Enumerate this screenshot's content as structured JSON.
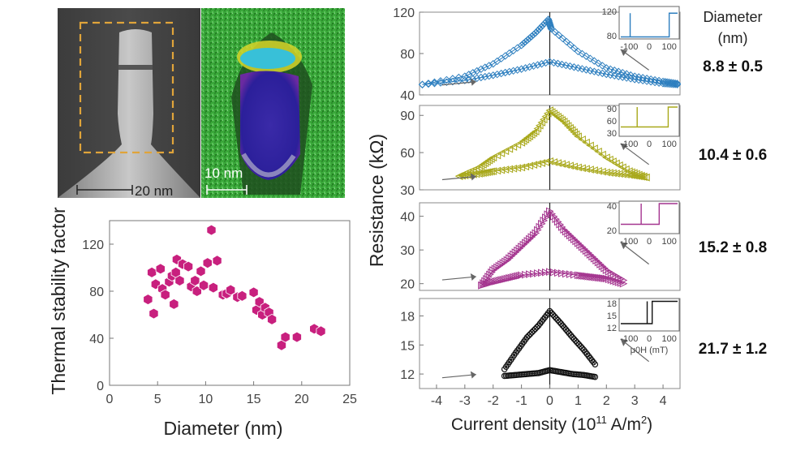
{
  "panels": {
    "tem": {
      "scale_label": "20 nm"
    },
    "eds": {
      "scale_label": "10 nm"
    }
  },
  "colors": {
    "scatter": "#c8207e",
    "dia_8_8": "#2e7fbf",
    "dia_10_4": "#a8a81a",
    "dia_15_2": "#a4358f",
    "dia_21_7": "#111111",
    "tem_box": "#e0a43a"
  },
  "chart_data": [
    {
      "type": "scatter",
      "xlabel": "Diameter (nm)",
      "ylabel": "Thermal stability factor",
      "xlim": [
        0,
        25
      ],
      "ylim": [
        0,
        140
      ],
      "xticks": [
        "0",
        "5",
        "10",
        "15",
        "20",
        "25"
      ],
      "yticks": [
        "0",
        "40",
        "80",
        "120"
      ],
      "grid": false,
      "marker": "hexagon",
      "points": [
        [
          4.0,
          73
        ],
        [
          4.4,
          96
        ],
        [
          4.6,
          61
        ],
        [
          4.8,
          86
        ],
        [
          5.3,
          99
        ],
        [
          5.5,
          82
        ],
        [
          5.8,
          77
        ],
        [
          6.2,
          88
        ],
        [
          6.5,
          93
        ],
        [
          6.7,
          69
        ],
        [
          6.9,
          96
        ],
        [
          7.0,
          107
        ],
        [
          7.3,
          89
        ],
        [
          7.6,
          103
        ],
        [
          8.2,
          101
        ],
        [
          8.5,
          84
        ],
        [
          8.9,
          89
        ],
        [
          9.1,
          80
        ],
        [
          9.5,
          97
        ],
        [
          9.8,
          85
        ],
        [
          10.2,
          104
        ],
        [
          10.6,
          132
        ],
        [
          10.8,
          83
        ],
        [
          11.2,
          106
        ],
        [
          11.8,
          77
        ],
        [
          12.2,
          78
        ],
        [
          12.6,
          81
        ],
        [
          13.3,
          75
        ],
        [
          13.8,
          76
        ],
        [
          15.0,
          79
        ],
        [
          15.3,
          64
        ],
        [
          15.6,
          71
        ],
        [
          15.9,
          60
        ],
        [
          16.2,
          66
        ],
        [
          16.6,
          62
        ],
        [
          16.9,
          56
        ],
        [
          17.9,
          34
        ],
        [
          18.3,
          41
        ],
        [
          19.5,
          41
        ],
        [
          21.3,
          48
        ],
        [
          22.0,
          46
        ]
      ]
    },
    {
      "type": "scatter",
      "subtype": "hysteresis-loops",
      "xlabel": "Current density (10",
      "xlabel_exp": "11",
      "xlabel_unit": " A/m",
      "xlabel_sq": "2",
      "xlabel_close": ")",
      "ylabel": "Resistance (kΩ)",
      "xlim": [
        -4.6,
        4.6
      ],
      "xticks": [
        "-4",
        "-3",
        "-2",
        "-1",
        "0",
        "1",
        "2",
        "3",
        "4"
      ],
      "legend_title": [
        "Diameter",
        "(nm)"
      ],
      "series": [
        {
          "name": "8.8 ± 0.5",
          "marker": "diamond",
          "ylim": [
            40,
            120
          ],
          "yticks": [
            "40",
            "80",
            "120"
          ],
          "upper": {
            "x": [
              -4.5,
              -3,
              -2,
              -1,
              -0.5,
              -0.05,
              0.05,
              1,
              2,
              3,
              4,
              4.5
            ],
            "y": [
              50,
              58,
              70,
              88,
              100,
              113,
              104,
              82,
              66,
              58,
              53,
              51
            ]
          },
          "lower": {
            "x": [
              -4.5,
              -3,
              -2,
              -1,
              0,
              1,
              2,
              3,
              4,
              4.5
            ],
            "y": [
              50,
              54,
              59,
              65,
              72,
              66,
              60,
              55,
              51,
              50
            ]
          },
          "inset": {
            "xlabel": "",
            "xticks": [
              "-100",
              "0",
              "100"
            ],
            "yticks": [
              "80",
              "120"
            ],
            "loop_low": 78,
            "loop_high": 117,
            "switch_neg": -95,
            "switch_pos": 100
          }
        },
        {
          "name": "10.4 ± 0.6",
          "marker": "triangle-left",
          "ylim": [
            30,
            98
          ],
          "yticks": [
            "30",
            "60",
            "90"
          ],
          "upper": {
            "x": [
              -3.2,
              -2.5,
              -2,
              -1,
              -0.5,
              0,
              0.5,
              1,
              2,
              2.8,
              3.4
            ],
            "y": [
              41,
              48,
              56,
              68,
              77,
              94,
              85,
              73,
              56,
              45,
              40
            ]
          },
          "lower": {
            "x": [
              -3.2,
              -2.5,
              -2,
              -1,
              0,
              1,
              2,
              2.8,
              3.4
            ],
            "y": [
              41,
              43,
              45,
              48,
              53,
              48,
              44,
              42,
              40
            ]
          },
          "inset": {
            "xlabel": "",
            "xticks": [
              "-100",
              "0",
              "100"
            ],
            "yticks": [
              "30",
              "60",
              "90"
            ],
            "loop_low": 45,
            "loop_high": 94,
            "switch_neg": -60,
            "switch_pos": 95
          }
        },
        {
          "name": "15.2 ± 0.8",
          "marker": "triangle-right",
          "ylim": [
            18,
            44
          ],
          "yticks": [
            "20",
            "30",
            "40"
          ],
          "upper": {
            "x": [
              -2.4,
              -2,
              -1.5,
              -1,
              -0.5,
              0,
              0.5,
              1,
              1.5,
              2,
              2.6
            ],
            "y": [
              19.5,
              24,
              27,
              31,
              35,
              41.5,
              36,
              32,
              28,
              24,
              21
            ]
          },
          "lower": {
            "x": [
              -2.4,
              -2,
              -1.5,
              -1,
              0,
              1,
              1.5,
              2,
              2.6
            ],
            "y": [
              19.5,
              20.5,
              21.5,
              22.5,
              23.5,
              22.5,
              22,
              21.5,
              20
            ]
          },
          "inset": {
            "xlabel": "",
            "xticks": [
              "-100",
              "0",
              "100"
            ],
            "yticks": [
              "20",
              "40"
            ],
            "loop_low": 25,
            "loop_high": 42,
            "switch_neg": -40,
            "switch_pos": 50
          }
        },
        {
          "name": "21.7 ± 1.2",
          "marker": "circle",
          "ylim": [
            10.5,
            19.8
          ],
          "yticks": [
            "12",
            "15",
            "18"
          ],
          "upper": {
            "x": [
              -1.6,
              -1.2,
              -0.8,
              -0.4,
              0,
              0.4,
              0.8,
              1.2,
              1.6
            ],
            "y": [
              12.5,
              14.2,
              15.8,
              17.0,
              18.5,
              17.2,
              15.8,
              14.5,
              13.0
            ]
          },
          "lower": {
            "x": [
              -1.6,
              -1.2,
              -0.8,
              -0.4,
              0,
              0.4,
              0.8,
              1.2,
              1.6
            ],
            "y": [
              11.8,
              11.9,
              12.0,
              12.1,
              12.4,
              12.2,
              12.0,
              11.9,
              11.7
            ]
          },
          "inset": {
            "xlabel": "μ0H (mT)",
            "xticks": [
              "-100",
              "0",
              "100"
            ],
            "yticks": [
              "12",
              "15",
              "18"
            ],
            "loop_low": 13,
            "loop_high": 18.5,
            "switch_neg": -10,
            "switch_pos": 15
          }
        }
      ]
    }
  ]
}
